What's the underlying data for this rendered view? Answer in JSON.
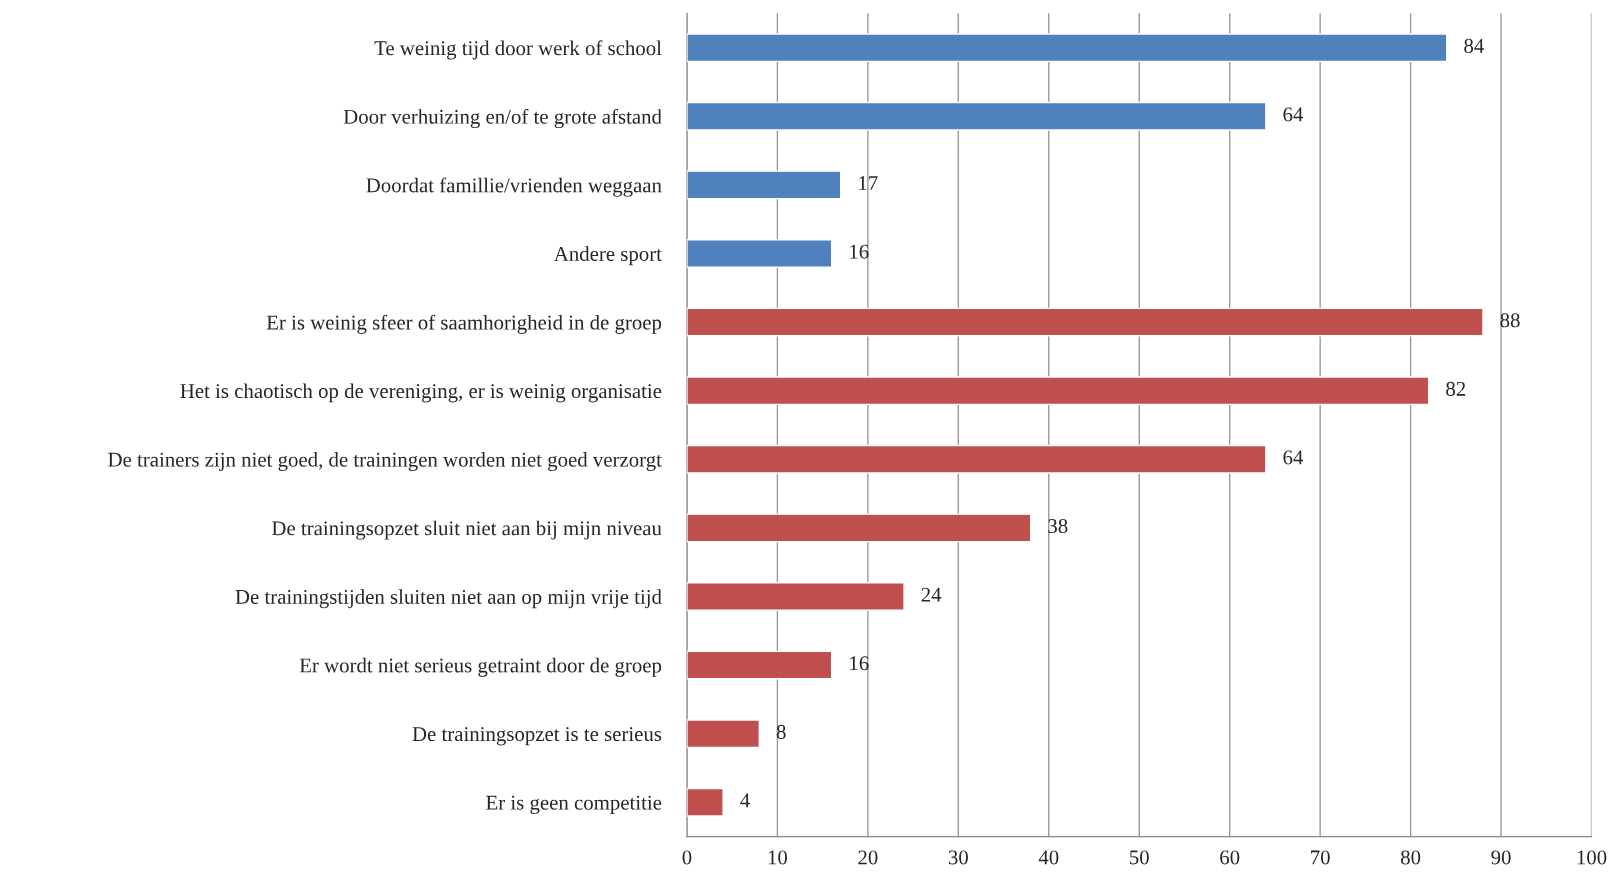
{
  "chart_data": {
    "type": "bar",
    "orientation": "horizontal",
    "categories": [
      "Te weinig tijd door werk of school",
      "Door verhuizing en/of te grote afstand",
      "Doordat famillie/vrienden weggaan",
      "Andere sport",
      "Er is weinig sfeer of saamhorigheid in de groep",
      "Het is chaotisch op de vereniging, er is weinig organisatie",
      "De trainers zijn niet goed, de trainingen worden niet goed verzorgt",
      "De trainingsopzet sluit niet aan bij mijn niveau",
      "De trainingstijden sluiten niet aan op mijn vrije tijd",
      "Er wordt niet serieus getraint door de groep",
      "De trainingsopzet is te serieus",
      "Er is geen competitie"
    ],
    "values": [
      84,
      64,
      17,
      16,
      88,
      82,
      64,
      38,
      24,
      16,
      8,
      4
    ],
    "colors": [
      "#4f81bd",
      "#4f81bd",
      "#4f81bd",
      "#4f81bd",
      "#c0504d",
      "#c0504d",
      "#c0504d",
      "#c0504d",
      "#c0504d",
      "#c0504d",
      "#c0504d",
      "#c0504d"
    ],
    "xlim": [
      0,
      100
    ],
    "xticks": [
      0,
      10,
      20,
      30,
      40,
      50,
      60,
      70,
      80,
      90,
      100
    ],
    "grid": "x",
    "data_labels": true,
    "legend": false
  }
}
